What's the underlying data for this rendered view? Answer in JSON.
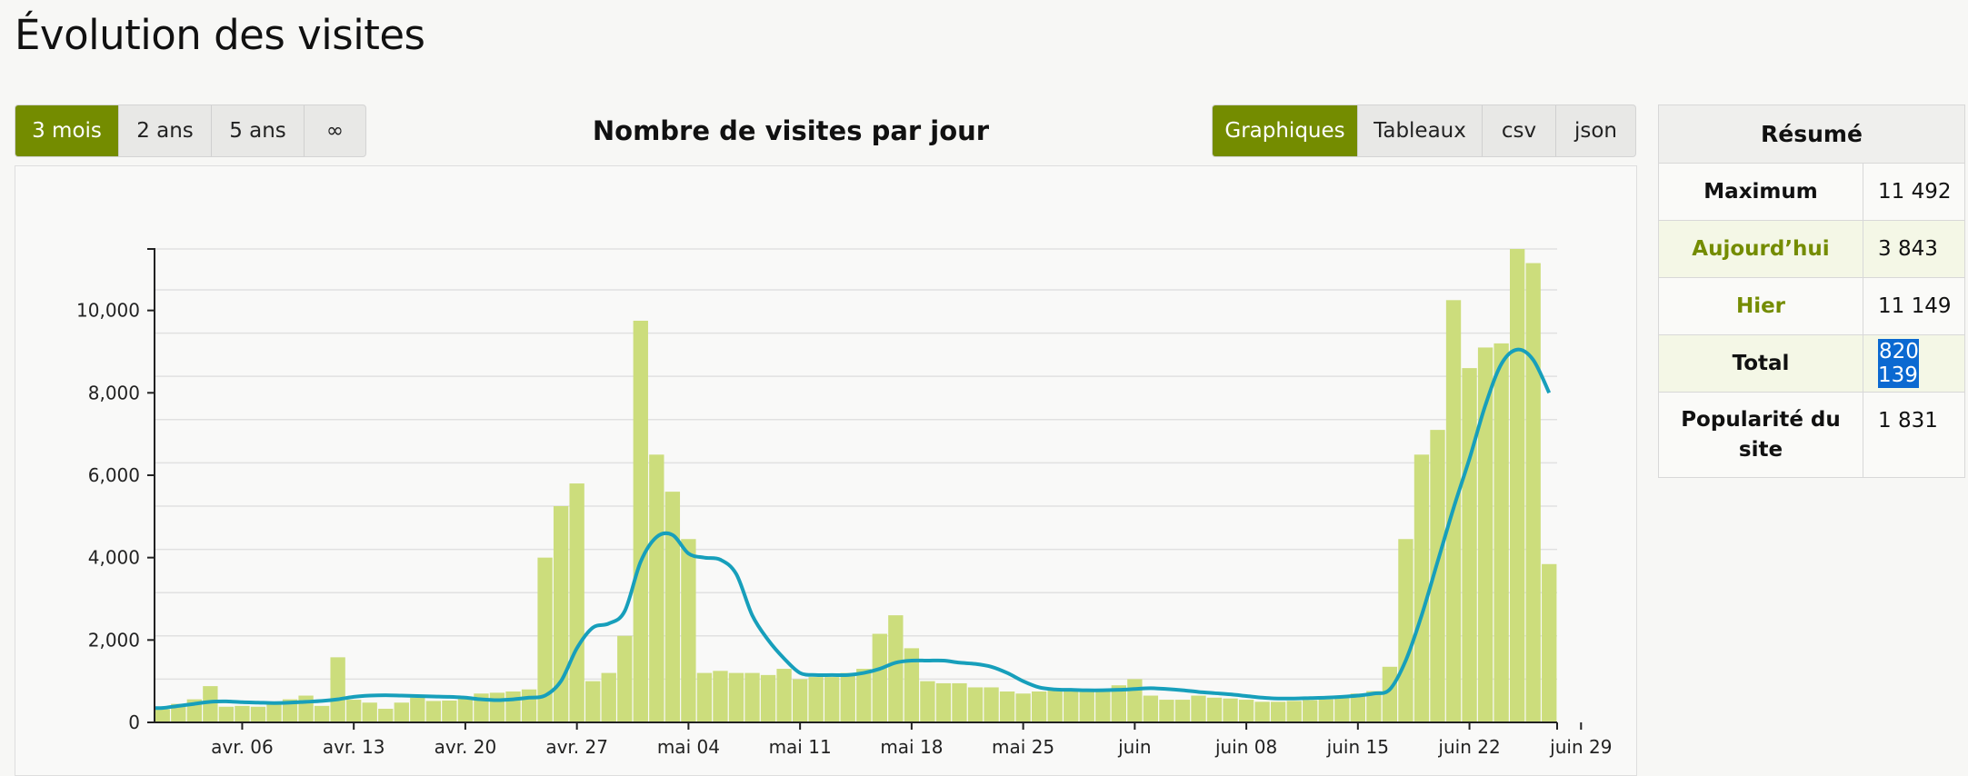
{
  "page": {
    "title": "Évolution des visites"
  },
  "range_buttons": [
    {
      "label": "3 mois",
      "active": true
    },
    {
      "label": "2 ans",
      "active": false
    },
    {
      "label": "5 ans",
      "active": false
    },
    {
      "label": "∞",
      "active": false
    }
  ],
  "view_buttons": [
    {
      "label": "Graphiques",
      "active": true
    },
    {
      "label": "Tableaux",
      "active": false
    },
    {
      "label": "csv",
      "active": false
    },
    {
      "label": "json",
      "active": false
    }
  ],
  "summary": {
    "title": "Résumé",
    "rows": [
      {
        "label": "Maximum",
        "value": "11 492"
      },
      {
        "label": "Aujourd’hui",
        "value": "3 843"
      },
      {
        "label": "Hier",
        "value": "11 149"
      },
      {
        "label": "Total",
        "value": "820 139"
      },
      {
        "label": "Popularité du site",
        "value": "1 831"
      }
    ]
  },
  "colors": {
    "accent": "#748c00",
    "bar": "#ccdd7c",
    "line": "#179fbb",
    "selection": "#0b69d1"
  },
  "chart_data": {
    "type": "bar",
    "title": "Nombre de visites par jour",
    "xlabel": "",
    "ylabel": "",
    "ylim": [
      0,
      11492
    ],
    "yticks": [
      0,
      2000,
      4000,
      6000,
      8000,
      10000
    ],
    "ytick_labels": [
      "0",
      "2,000",
      "4,000",
      "6,000",
      "8,000",
      "10,000"
    ],
    "xtick_labels": [
      "avr. 06",
      "avr. 13",
      "avr. 20",
      "avr. 27",
      "mai 04",
      "mai 11",
      "mai 18",
      "mai 25",
      "juin",
      "juin 08",
      "juin 15",
      "juin 22",
      "juin 29"
    ],
    "grid": true,
    "series": [
      {
        "type": "bar",
        "values": [
          320,
          450,
          560,
          880,
          380,
          400,
          380,
          450,
          560,
          650,
          400,
          1580,
          550,
          480,
          330,
          480,
          600,
          520,
          530,
          620,
          700,
          720,
          750,
          800,
          4000,
          5250,
          5800,
          1000,
          1200,
          2100,
          9750,
          6500,
          5600,
          4450,
          1200,
          1250,
          1200,
          1200,
          1150,
          1300,
          1050,
          1100,
          1100,
          1200,
          1300,
          2150,
          2600,
          1800,
          1000,
          950,
          950,
          850,
          850,
          750,
          700,
          750,
          780,
          780,
          800,
          750,
          900,
          1050,
          650,
          550,
          550,
          650,
          600,
          580,
          550,
          500,
          500,
          520,
          540,
          560,
          600,
          700,
          760,
          1350,
          4450,
          6500,
          7100,
          10250,
          8600,
          9100,
          9200,
          11492,
          11149,
          3843
        ]
      },
      {
        "type": "line",
        "values": [
          350,
          400,
          450,
          500,
          510,
          490,
          480,
          470,
          480,
          500,
          520,
          560,
          620,
          650,
          660,
          650,
          640,
          630,
          620,
          600,
          560,
          540,
          560,
          600,
          650,
          1000,
          1800,
          2300,
          2400,
          2700,
          3900,
          4500,
          4550,
          4100,
          4000,
          3950,
          3600,
          2600,
          2000,
          1550,
          1200,
          1150,
          1150,
          1150,
          1200,
          1300,
          1450,
          1500,
          1500,
          1500,
          1450,
          1420,
          1350,
          1200,
          1000,
          850,
          800,
          790,
          780,
          780,
          790,
          810,
          830,
          810,
          780,
          740,
          710,
          680,
          640,
          600,
          580,
          580,
          590,
          600,
          620,
          650,
          700,
          800,
          1500,
          2600,
          3900,
          5200,
          6400,
          7700,
          8700,
          9050,
          8800,
          8000
        ]
      }
    ]
  }
}
